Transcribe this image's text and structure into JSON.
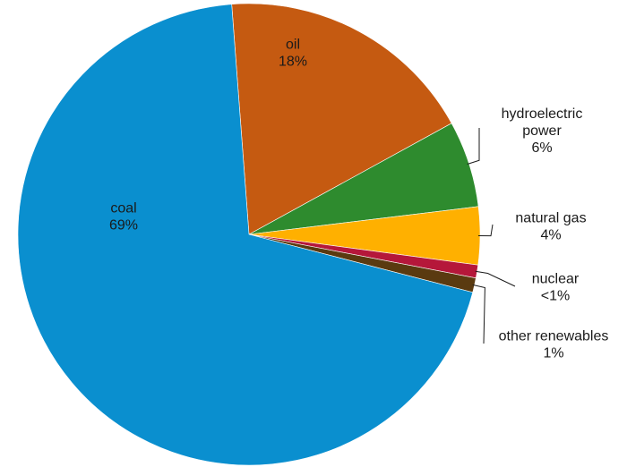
{
  "chart_data": {
    "type": "pie",
    "title": "",
    "slices": [
      {
        "name": "oil",
        "value": 18,
        "value_label": "18%",
        "color": "#c55a11"
      },
      {
        "name": "hydroelectric power",
        "value": 6,
        "value_label": "6%",
        "color": "#2e8b2e"
      },
      {
        "name": "natural gas",
        "value": 4,
        "value_label": "4%",
        "color": "#ffb000"
      },
      {
        "name": "nuclear",
        "value": 0.9,
        "value_label": "<1%",
        "color": "#b5173a"
      },
      {
        "name": "other renewables",
        "value": 1,
        "value_label": "1%",
        "color": "#5a3a10"
      },
      {
        "name": "coal",
        "value": 69,
        "value_label": "69%",
        "color": "#0a8fcf"
      }
    ]
  }
}
